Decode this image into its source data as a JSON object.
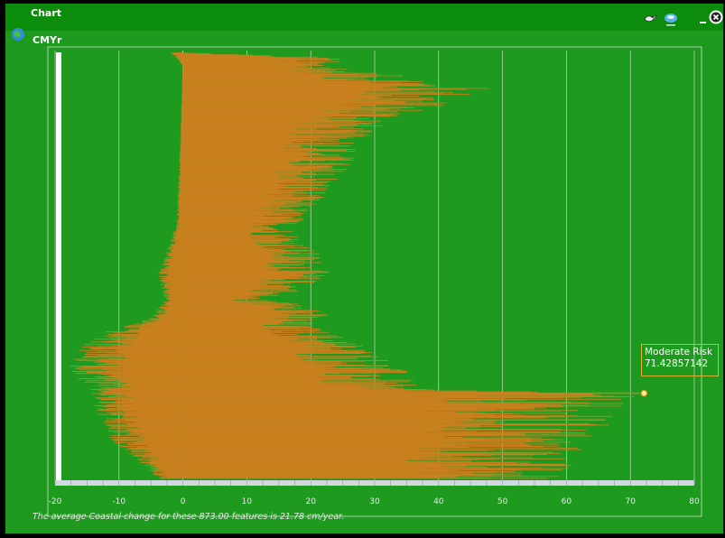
{
  "window": {
    "title": "Chart",
    "subtitle": "CMYr"
  },
  "toolbar": {
    "icons": [
      "bird-icon",
      "globe-icon",
      "minimize-icon",
      "close-icon"
    ]
  },
  "tooltip": {
    "label": "Moderate Risk",
    "value": "71.42857142"
  },
  "footer": {
    "text": "The average Coastal change for these 873.00 features is 21.78 cm/year."
  },
  "colors": {
    "background": "#1e9a1e",
    "bar": "#c8801e",
    "grid": "#c8d8c8",
    "axis": "#d0d8e0"
  },
  "chart_data": {
    "type": "bar",
    "orientation": "horizontal",
    "xlim": [
      -20,
      80
    ],
    "xticks": [
      "-20",
      "-10",
      "0",
      "10",
      "20",
      "30",
      "40",
      "50",
      "60",
      "70",
      "80"
    ],
    "n_bars": 873,
    "profile_envelope": [
      [
        0.0,
        0
      ],
      [
        0.012,
        26
      ],
      [
        0.025,
        24
      ],
      [
        0.045,
        30
      ],
      [
        0.075,
        45
      ],
      [
        0.085,
        49
      ],
      [
        0.11,
        44
      ],
      [
        0.14,
        38
      ],
      [
        0.18,
        30
      ],
      [
        0.23,
        28
      ],
      [
        0.3,
        25
      ],
      [
        0.37,
        20
      ],
      [
        0.42,
        18
      ],
      [
        0.48,
        22
      ],
      [
        0.52,
        23
      ],
      [
        0.56,
        19
      ],
      [
        0.58,
        12
      ],
      [
        0.6,
        25
      ],
      [
        0.64,
        20
      ],
      [
        0.68,
        28
      ],
      [
        0.74,
        35
      ],
      [
        0.79,
        37
      ],
      [
        0.8,
        71.4
      ],
      [
        0.84,
        68
      ],
      [
        0.88,
        67
      ],
      [
        0.92,
        64
      ],
      [
        0.96,
        62
      ],
      [
        1.0,
        60
      ]
    ],
    "negative_envelope": [
      [
        0.0,
        -2
      ],
      [
        0.03,
        0
      ],
      [
        0.4,
        -1
      ],
      [
        0.52,
        -4
      ],
      [
        0.58,
        -3
      ],
      [
        0.62,
        -5
      ],
      [
        0.66,
        -13
      ],
      [
        0.7,
        -17
      ],
      [
        0.73,
        -18
      ],
      [
        0.76,
        -17
      ],
      [
        0.8,
        -15
      ],
      [
        0.85,
        -14
      ],
      [
        0.9,
        -12
      ],
      [
        0.95,
        -8
      ],
      [
        1.0,
        -4
      ]
    ],
    "highlight": {
      "label": "Moderate Risk",
      "value": 71.42857142
    }
  }
}
